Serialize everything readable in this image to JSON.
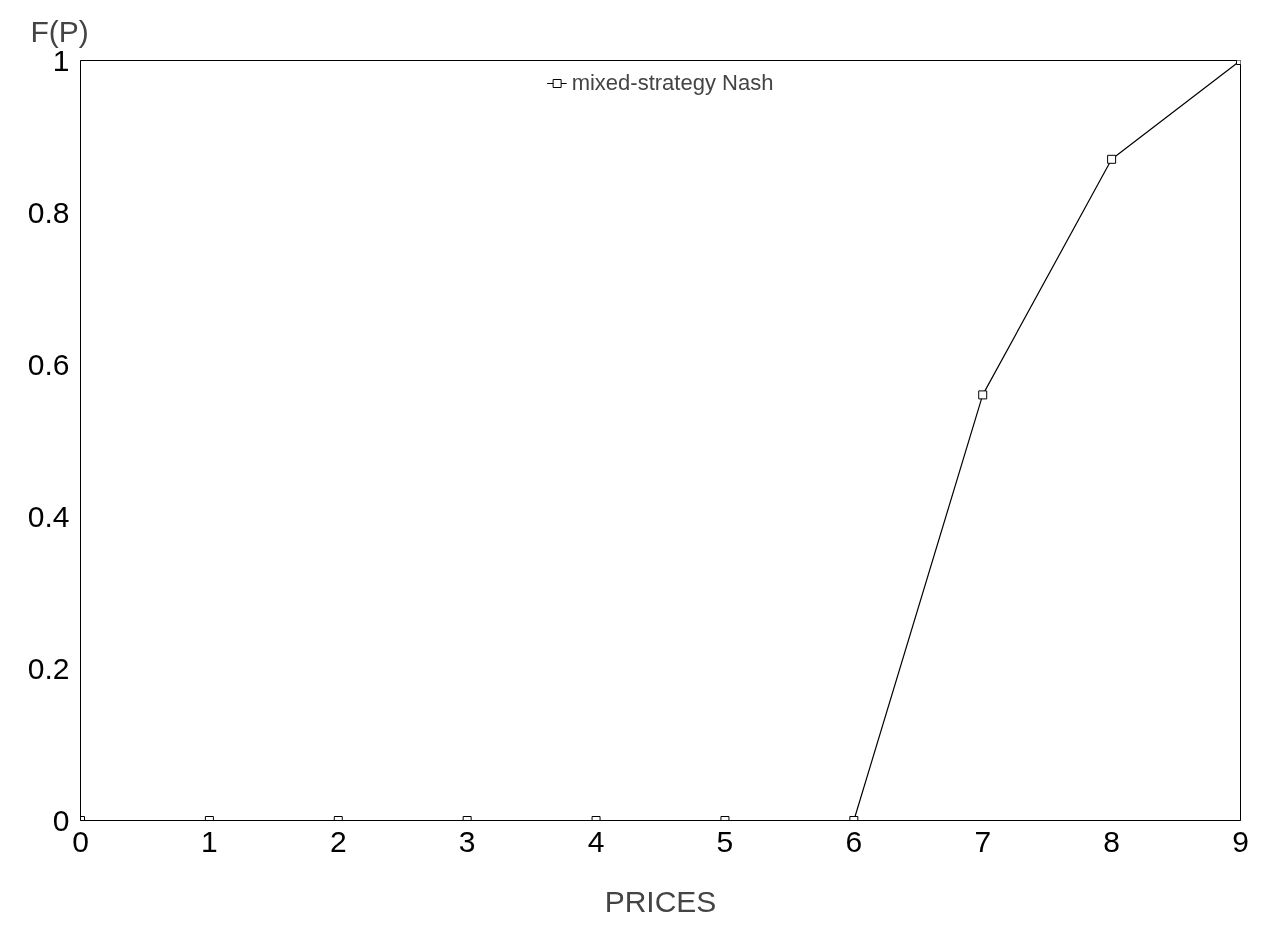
{
  "chart_data": {
    "type": "line",
    "xlabel": "PRICES",
    "ylabel": "F(P)",
    "x": [
      0,
      1,
      2,
      3,
      4,
      5,
      6,
      7,
      8,
      9
    ],
    "series": [
      {
        "name": "mixed-strategy Nash",
        "color": "#000000",
        "values": [
          0,
          0,
          0,
          0,
          0,
          0,
          0,
          0.56,
          0.87,
          1
        ]
      }
    ],
    "xlim": [
      0,
      9
    ],
    "ylim": [
      0,
      1
    ],
    "xticks": [
      0,
      1,
      2,
      3,
      4,
      5,
      6,
      7,
      8,
      9
    ],
    "yticks": [
      0,
      0.2,
      0.4,
      0.6,
      0.8,
      1
    ],
    "marker": "square",
    "line_style": "solid",
    "legend": "top",
    "grid": false
  }
}
